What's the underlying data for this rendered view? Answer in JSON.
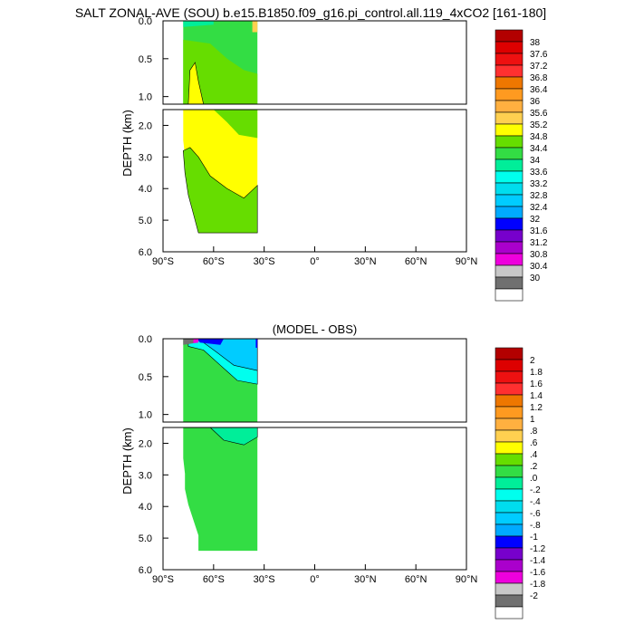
{
  "title": "SALT ZONAL-AVE (SOU) b.e15.B1850.f09_g16.pi_control.all.119_4xCO2 [161-180]",
  "chart_data": [
    {
      "type": "heatmap",
      "title": "",
      "ylabel": "DEPTH (km)",
      "xlabel": "",
      "x_ticks": [
        "90°S",
        "60°S",
        "30°S",
        "0°",
        "30°N",
        "60°N",
        "90°N"
      ],
      "y_ticks_upper": [
        "0.0",
        "0.5",
        "1.0"
      ],
      "y_ticks_lower": [
        "2.0",
        "3.0",
        "4.0",
        "5.0",
        "6.0"
      ],
      "xlim": [
        -90,
        90
      ],
      "ylim": [
        0,
        6
      ],
      "data_extent_lat": [
        -78,
        -34
      ],
      "levels": [
        "38",
        "37.6",
        "37.2",
        "36.8",
        "36.4",
        "36",
        "35.6",
        "35.2",
        "34.8",
        "34.4",
        "34",
        "33.6",
        "33.2",
        "32.8",
        "32.4",
        "32",
        "31.6",
        "31.2",
        "30.8",
        "30.4",
        "30"
      ],
      "colors": [
        "#b30000",
        "#dd0000",
        "#ee1111",
        "#ff3030",
        "#ee7700",
        "#ff9a20",
        "#ffb040",
        "#ffd050",
        "#ffff00",
        "#66dd00",
        "#33dd44",
        "#00ee99",
        "#00ffee",
        "#00ddee",
        "#00ccff",
        "#00aaff",
        "#0000ff",
        "#7700cc",
        "#aa00cc",
        "#ee00dd",
        "#c8c8c8",
        "#707070",
        "#ffffff"
      ]
    },
    {
      "type": "heatmap",
      "title": "(MODEL - OBS)",
      "ylabel": "DEPTH (km)",
      "xlabel": "",
      "x_ticks": [
        "90°S",
        "60°S",
        "30°S",
        "0°",
        "30°N",
        "60°N",
        "90°N"
      ],
      "y_ticks_upper": [
        "0.0",
        "0.5",
        "1.0"
      ],
      "y_ticks_lower": [
        "2.0",
        "3.0",
        "4.0",
        "5.0",
        "6.0"
      ],
      "xlim": [
        -90,
        90
      ],
      "ylim": [
        0,
        6
      ],
      "data_extent_lat": [
        -78,
        -34
      ],
      "levels": [
        "2",
        "1.8",
        "1.6",
        "1.4",
        "1.2",
        "1",
        ".8",
        ".6",
        ".4",
        ".2",
        ".0",
        "-.2",
        "-.4",
        "-.6",
        "-.8",
        "-1",
        "-1.2",
        "-1.4",
        "-1.6",
        "-1.8",
        "-2"
      ],
      "colors": [
        "#b30000",
        "#dd0000",
        "#ee1111",
        "#ff3030",
        "#ee7700",
        "#ff9a20",
        "#ffb040",
        "#ffd050",
        "#ffff00",
        "#66dd00",
        "#33dd44",
        "#00ee99",
        "#00ffee",
        "#00ddee",
        "#00ccff",
        "#00aaff",
        "#0000ff",
        "#7700cc",
        "#aa00cc",
        "#ee00dd",
        "#c8c8c8",
        "#707070",
        "#ffffff"
      ]
    }
  ]
}
